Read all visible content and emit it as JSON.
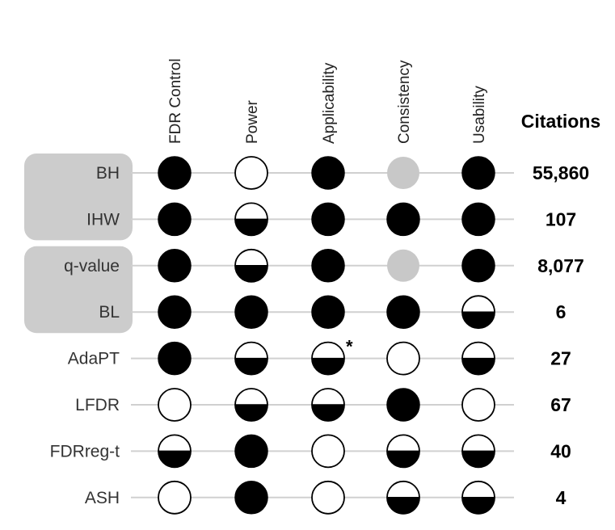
{
  "columns": [
    "FDR Control",
    "Power",
    "Applicability",
    "Consistency",
    "Usability"
  ],
  "citations_header": "Citations",
  "methods": [
    {
      "name": "BH",
      "ratings": [
        "full",
        "empty",
        "full",
        "na",
        "full"
      ],
      "citations": "55,860"
    },
    {
      "name": "IHW",
      "ratings": [
        "full",
        "half",
        "full",
        "full",
        "full"
      ],
      "citations": "107"
    },
    {
      "name": "q-value",
      "ratings": [
        "full",
        "half",
        "full",
        "na",
        "full"
      ],
      "citations": "8,077"
    },
    {
      "name": "BL",
      "ratings": [
        "full",
        "full",
        "full",
        "full",
        "half"
      ],
      "citations": "6"
    },
    {
      "name": "AdaPT",
      "ratings": [
        "full",
        "half",
        "half",
        "empty",
        "half"
      ],
      "citations": "27"
    },
    {
      "name": "LFDR",
      "ratings": [
        "empty",
        "half",
        "half",
        "full",
        "empty"
      ],
      "citations": "67"
    },
    {
      "name": "FDRreg-t",
      "ratings": [
        "half",
        "full",
        "empty",
        "half",
        "half"
      ],
      "citations": "40"
    },
    {
      "name": "ASH",
      "ratings": [
        "empty",
        "full",
        "empty",
        "half",
        "half"
      ],
      "citations": "4"
    }
  ],
  "groups": [
    [
      "BH",
      "IHW"
    ],
    [
      "q-value",
      "BL"
    ]
  ],
  "annotations": [
    {
      "method": "AdaPT",
      "column": "Applicability",
      "text": "*"
    }
  ],
  "colors": {
    "full": "#000000",
    "empty": "#ffffff",
    "na": "#c8c8c8",
    "group_box": "#cccccc",
    "line": "#d0d0d0"
  }
}
